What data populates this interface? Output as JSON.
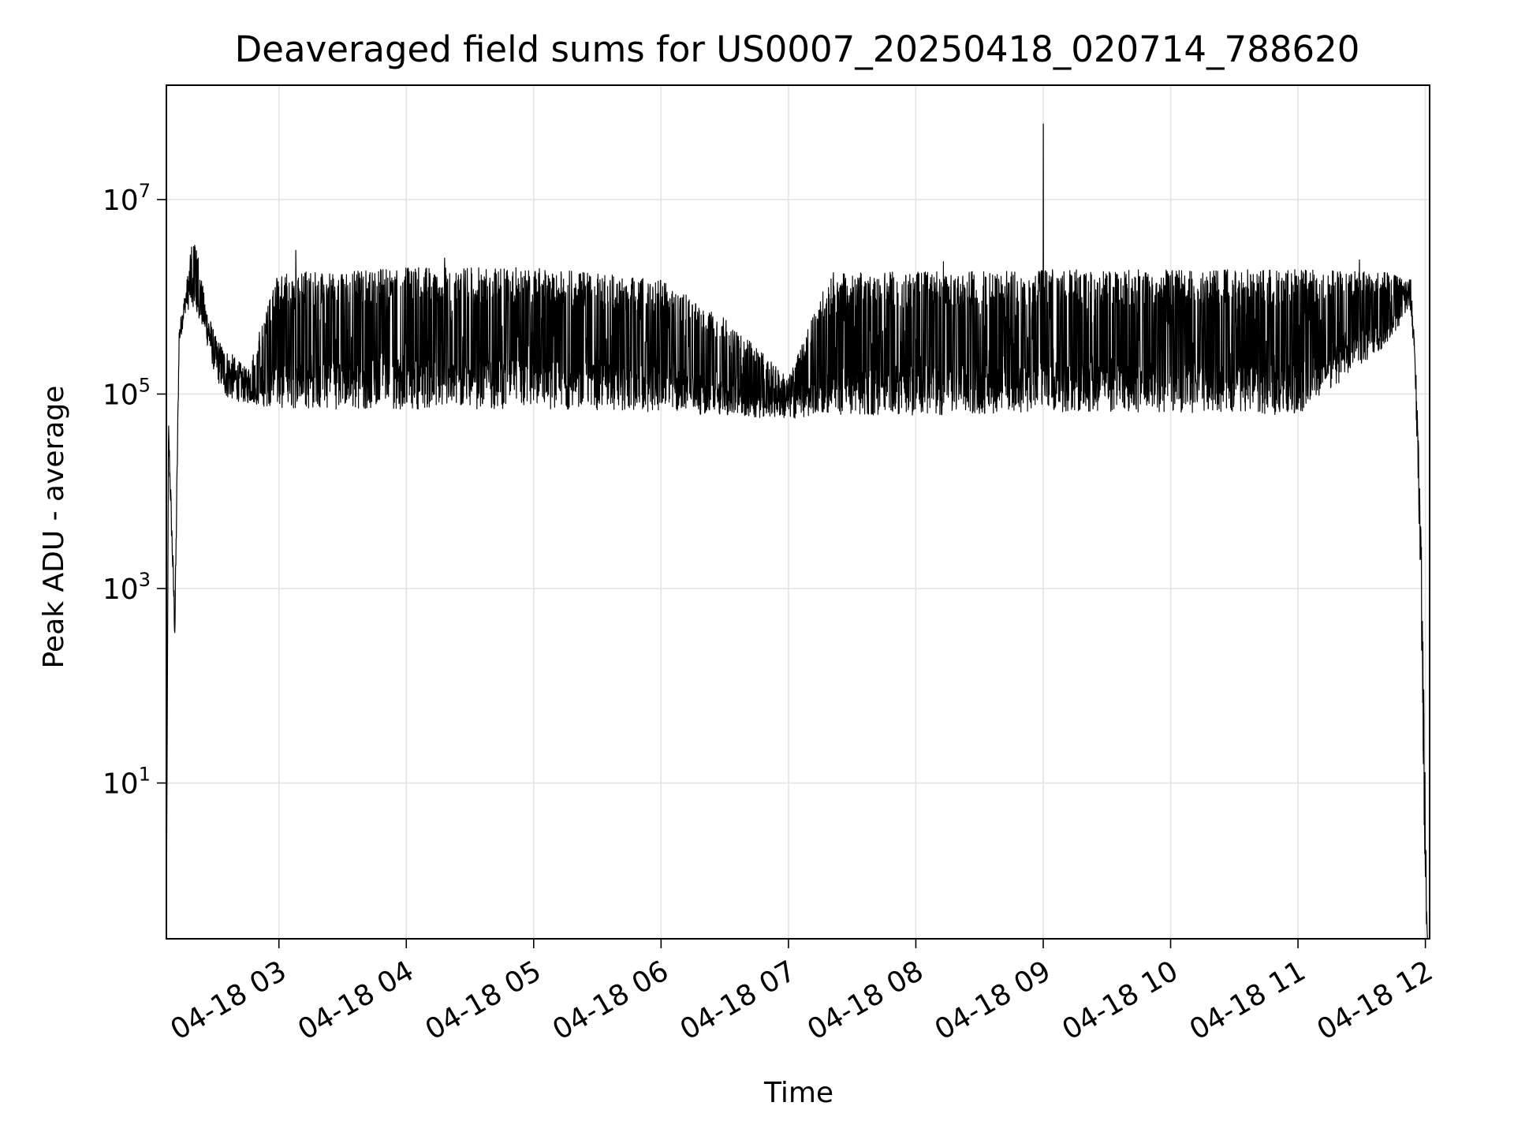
{
  "chart_data": {
    "type": "line",
    "title": "Deaveraged field sums for US0007_20250418_020714_788620",
    "xlabel": "Time",
    "ylabel": "Peak ADU - average",
    "x_scale": "time",
    "y_scale": "log",
    "xlim": [
      "2025-04-18 02:07",
      "2025-04-18 12:02"
    ],
    "ylim": [
      0.25,
      150000000
    ],
    "grid": true,
    "x_ticks": [
      {
        "value": "2025-04-18 03:00",
        "label": "04-18 03"
      },
      {
        "value": "2025-04-18 04:00",
        "label": "04-18 04"
      },
      {
        "value": "2025-04-18 05:00",
        "label": "04-18 05"
      },
      {
        "value": "2025-04-18 06:00",
        "label": "04-18 06"
      },
      {
        "value": "2025-04-18 07:00",
        "label": "04-18 07"
      },
      {
        "value": "2025-04-18 08:00",
        "label": "04-18 08"
      },
      {
        "value": "2025-04-18 09:00",
        "label": "04-18 09"
      },
      {
        "value": "2025-04-18 10:00",
        "label": "04-18 10"
      },
      {
        "value": "2025-04-18 11:00",
        "label": "04-18 11"
      },
      {
        "value": "2025-04-18 12:00",
        "label": "04-18 12"
      }
    ],
    "y_ticks": [
      {
        "value": 10,
        "base": "10",
        "exp": "1"
      },
      {
        "value": 1000,
        "base": "10",
        "exp": "3"
      },
      {
        "value": 100000,
        "base": "10",
        "exp": "5"
      },
      {
        "value": 10000000,
        "base": "10",
        "exp": "7"
      }
    ],
    "series_color": "#000000",
    "envelope": [
      {
        "t": "2025-04-18 02:07",
        "low": 0.25,
        "high": 0.25
      },
      {
        "t": "2025-04-18 02:08",
        "low": 30000,
        "high": 60000
      },
      {
        "t": "2025-04-18 02:11",
        "low": 250,
        "high": 600
      },
      {
        "t": "2025-04-18 02:13",
        "low": 300000,
        "high": 500000
      },
      {
        "t": "2025-04-18 02:16",
        "low": 700000,
        "high": 1200000
      },
      {
        "t": "2025-04-18 02:20",
        "low": 800000,
        "high": 5000000
      },
      {
        "t": "2025-04-18 02:25",
        "low": 400000,
        "high": 1000000
      },
      {
        "t": "2025-04-18 02:30",
        "low": 150000,
        "high": 400000
      },
      {
        "t": "2025-04-18 02:35",
        "low": 90000,
        "high": 300000
      },
      {
        "t": "2025-04-18 02:45",
        "low": 80000,
        "high": 180000
      },
      {
        "t": "2025-04-18 03:00",
        "low": 70000,
        "high": 1800000
      },
      {
        "t": "2025-04-18 03:30",
        "low": 70000,
        "high": 1800000
      },
      {
        "t": "2025-04-18 04:00",
        "low": 70000,
        "high": 2000000
      },
      {
        "t": "2025-04-18 05:00",
        "low": 70000,
        "high": 2000000
      },
      {
        "t": "2025-04-18 06:00",
        "low": 65000,
        "high": 1500000
      },
      {
        "t": "2025-04-18 06:30",
        "low": 60000,
        "high": 600000
      },
      {
        "t": "2025-04-18 07:00",
        "low": 55000,
        "high": 150000
      },
      {
        "t": "2025-04-18 07:20",
        "low": 60000,
        "high": 1800000
      },
      {
        "t": "2025-04-18 08:00",
        "low": 60000,
        "high": 1800000
      },
      {
        "t": "2025-04-18 09:00",
        "low": 65000,
        "high": 1900000
      },
      {
        "t": "2025-04-18 10:00",
        "low": 65000,
        "high": 1900000
      },
      {
        "t": "2025-04-18 11:00",
        "low": 60000,
        "high": 1900000
      },
      {
        "t": "2025-04-18 11:40",
        "low": 300000,
        "high": 1800000
      },
      {
        "t": "2025-04-18 11:53",
        "low": 700000,
        "high": 1600000
      },
      {
        "t": "2025-04-18 11:55",
        "low": 200000,
        "high": 400000
      },
      {
        "t": "2025-04-18 11:58",
        "low": 500,
        "high": 5000
      },
      {
        "t": "2025-04-18 12:00",
        "low": 0.5,
        "high": 8
      },
      {
        "t": "2025-04-18 12:01",
        "low": 0.25,
        "high": 0.25
      }
    ],
    "spikes": [
      {
        "t": "2025-04-18 03:08",
        "value": 3000000
      },
      {
        "t": "2025-04-18 04:18",
        "value": 2500000
      },
      {
        "t": "2025-04-18 08:13",
        "value": 2300000
      },
      {
        "t": "2025-04-18 09:00",
        "value": 60000000
      },
      {
        "t": "2025-04-18 11:29",
        "value": 2400000
      }
    ]
  }
}
